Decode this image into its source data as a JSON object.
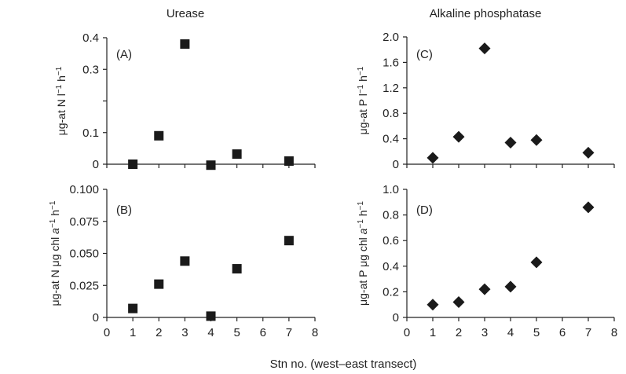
{
  "titles": {
    "left": "Urease",
    "right": "Alkaline phosphatase"
  },
  "xlabel": "Stn no. (west–east transect)",
  "colors": {
    "marker": "#1a1a1a",
    "axis": "#222222"
  },
  "chart_data": [
    {
      "type": "scatter",
      "panel": "(A)",
      "title": "Urease",
      "ylabel_parts": [
        "μg-at N l",
        "−1",
        " h",
        "−1"
      ],
      "marker": "square",
      "x": [
        1,
        2,
        3,
        4,
        5,
        7
      ],
      "y": [
        0.0,
        0.09,
        0.38,
        -0.003,
        0.032,
        0.01
      ],
      "xlim": [
        0,
        8
      ],
      "ylim": [
        0,
        0.4
      ],
      "yticks": [
        0,
        0.1,
        0.2,
        0.3,
        0.4
      ],
      "ytick_labels": [
        "0",
        "0.1",
        "",
        "0.3",
        "0.4"
      ],
      "xticks": [
        0,
        1,
        2,
        3,
        4,
        5,
        6,
        7,
        8
      ],
      "xtick_labels": []
    },
    {
      "type": "scatter",
      "panel": "(B)",
      "ylabel_parts": [
        "μg-at N μg chl ",
        "a",
        "−1",
        " h",
        "−1"
      ],
      "marker": "square",
      "x": [
        1,
        2,
        3,
        4,
        5,
        7
      ],
      "y": [
        0.007,
        0.026,
        0.044,
        0.001,
        0.038,
        0.06
      ],
      "xlim": [
        0,
        8
      ],
      "ylim": [
        0,
        0.1
      ],
      "yticks": [
        0,
        0.025,
        0.05,
        0.075,
        0.1
      ],
      "ytick_labels": [
        "0",
        "0.025",
        "0.050",
        "0.075",
        "0.100"
      ],
      "xticks": [
        0,
        1,
        2,
        3,
        4,
        5,
        6,
        7,
        8
      ],
      "xtick_labels": [
        "0",
        "1",
        "2",
        "3",
        "4",
        "5",
        "6",
        "7",
        "8"
      ]
    },
    {
      "type": "scatter",
      "panel": "(C)",
      "title": "Alkaline phosphatase",
      "ylabel_parts": [
        "μg-at P l",
        "−1",
        " h",
        "−1"
      ],
      "marker": "diamond",
      "x": [
        1,
        2,
        3,
        4,
        5,
        7
      ],
      "y": [
        0.1,
        0.43,
        1.82,
        0.34,
        0.38,
        0.18
      ],
      "xlim": [
        0,
        8
      ],
      "ylim": [
        0,
        2.0
      ],
      "yticks": [
        0,
        0.4,
        0.8,
        1.2,
        1.6,
        2.0
      ],
      "ytick_labels": [
        "0",
        "0.4",
        "0.8",
        "1.2",
        "1.6",
        "2.0"
      ],
      "xticks": [
        0,
        1,
        2,
        3,
        4,
        5,
        6,
        7,
        8
      ],
      "xtick_labels": []
    },
    {
      "type": "scatter",
      "panel": "(D)",
      "ylabel_parts": [
        "μg-at P μg chl ",
        "a",
        "−1",
        " h",
        "−1"
      ],
      "marker": "diamond",
      "x": [
        1,
        2,
        3,
        4,
        5,
        7
      ],
      "y": [
        0.1,
        0.12,
        0.22,
        0.24,
        0.43,
        0.86
      ],
      "xlim": [
        0,
        8
      ],
      "ylim": [
        0,
        1.0
      ],
      "yticks": [
        0,
        0.2,
        0.4,
        0.6,
        0.8,
        1.0
      ],
      "ytick_labels": [
        "0",
        "0.2",
        "0.4",
        "0.6",
        "0.8",
        "1.0"
      ],
      "xticks": [
        0,
        1,
        2,
        3,
        4,
        5,
        6,
        7,
        8
      ],
      "xtick_labels": [
        "0",
        "1",
        "2",
        "3",
        "4",
        "5",
        "6",
        "7",
        "8"
      ]
    }
  ]
}
